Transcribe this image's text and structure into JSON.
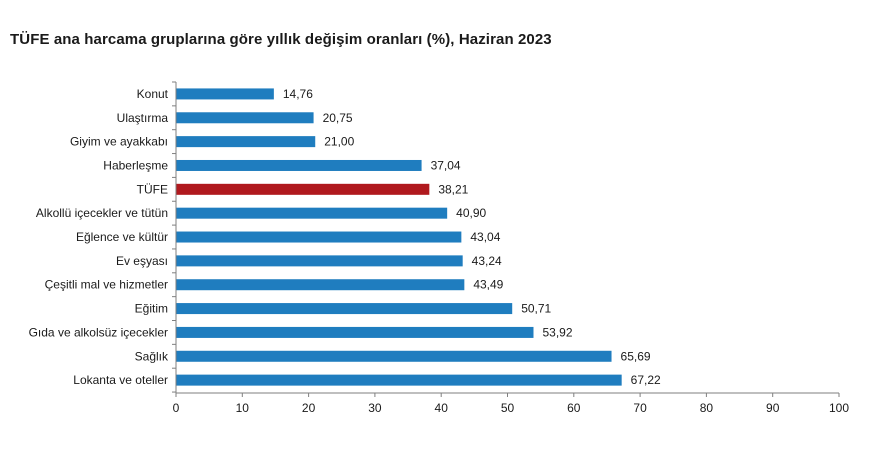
{
  "title": "TÜFE ana harcama gruplarına göre yıllık değişim oranları (%), Haziran 2023",
  "chart_data": {
    "type": "bar",
    "orientation": "horizontal",
    "title": "TÜFE ana harcama gruplarına göre yıllık değişim oranları (%), Haziran 2023",
    "categories": [
      "Konut",
      "Ulaştırma",
      "Giyim ve ayakkabı",
      "Haberleşme",
      "TÜFE",
      "Alkollü içecekler ve tütün",
      "Eğlence ve kültür",
      "Ev eşyası",
      "Çeşitli mal ve hizmetler",
      "Eğitim",
      "Gıda ve alkolsüz içecekler",
      "Sağlık",
      "Lokanta ve oteller"
    ],
    "values": [
      14.76,
      20.75,
      21.0,
      37.04,
      38.21,
      40.9,
      43.04,
      43.24,
      43.49,
      50.71,
      53.92,
      65.69,
      67.22
    ],
    "value_labels": [
      "14,76",
      "20,75",
      "21,00",
      "37,04",
      "38,21",
      "40,90",
      "43,04",
      "43,24",
      "43,49",
      "50,71",
      "53,92",
      "65,69",
      "67,22"
    ],
    "highlight": "TÜFE",
    "colors": {
      "bar": "#1f7dbf",
      "highlight": "#b0191e",
      "axis": "#7f7f7f"
    },
    "xlim": [
      0,
      100
    ],
    "xticks": [
      "0",
      "10",
      "20",
      "30",
      "40",
      "50",
      "60",
      "70",
      "80",
      "90",
      "100"
    ],
    "xlabel": "",
    "ylabel": "",
    "grid": false,
    "legend": "none"
  }
}
